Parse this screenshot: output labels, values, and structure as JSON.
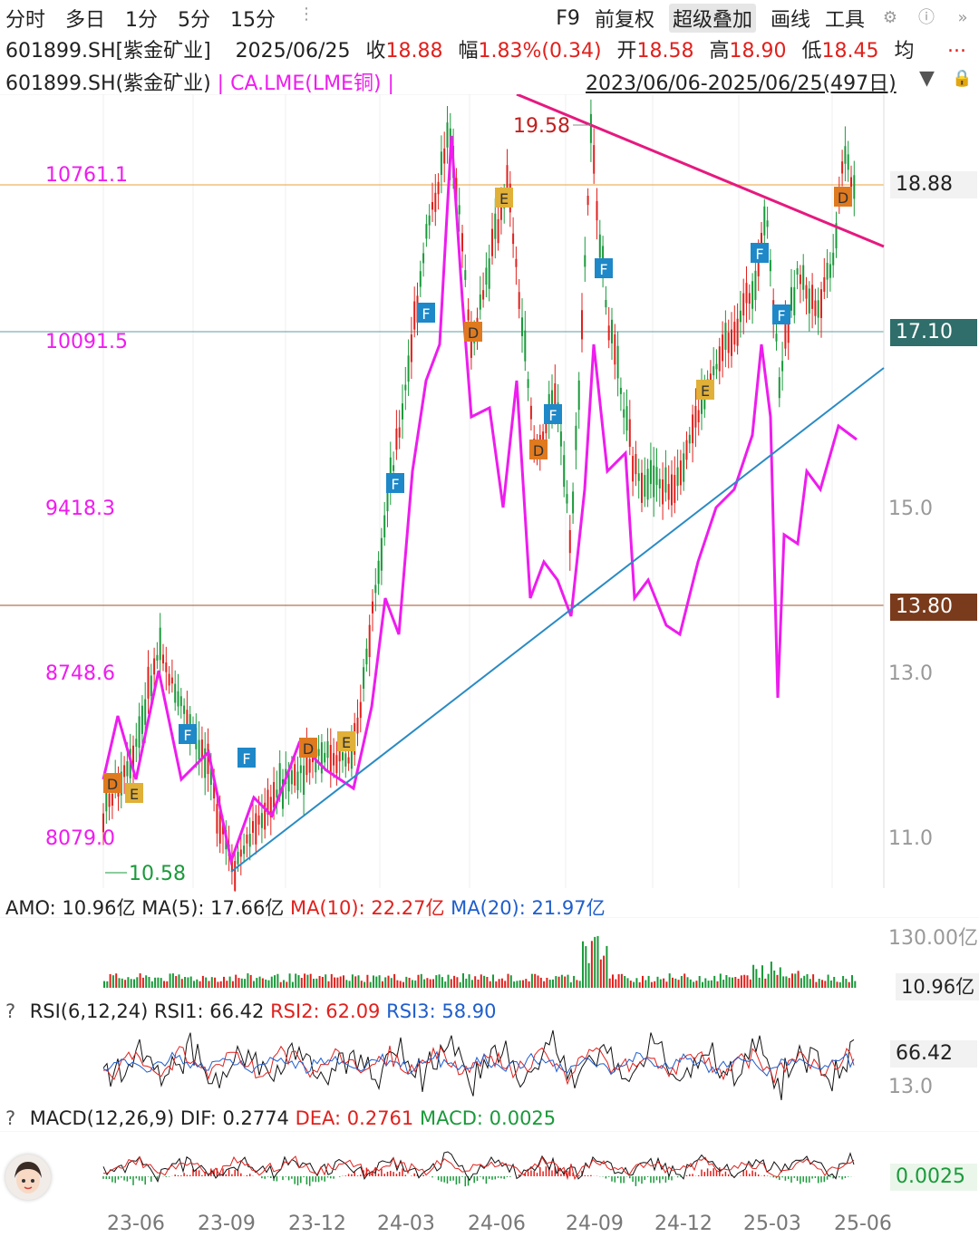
{
  "toolbar": {
    "left": [
      "分时",
      "多日",
      "1分",
      "5分",
      "15分"
    ],
    "right": [
      "F9",
      "前复权",
      "超级叠加",
      "画线",
      "工具"
    ],
    "active": "超级叠加"
  },
  "quote": {
    "symbol": "601899.SH[紫金矿业]",
    "date": "2025/06/25",
    "close_label": "收",
    "close": "18.88",
    "change_label": "幅",
    "change": "1.83%(0.34)",
    "open_label": "开",
    "open": "18.58",
    "high_label": "高",
    "high": "18.90",
    "low_label": "低",
    "low": "18.45",
    "avg_label": "均",
    "more": "..."
  },
  "overlay": {
    "main": "601899.SH(紫金矿业)",
    "separator": "|",
    "overlay_name": "CA.LME(LME铜)",
    "range": "2023/06/06-2025/06/25(497日)"
  },
  "main_chart": {
    "left_axis": [
      "10761.1",
      "10091.5",
      "9418.3",
      "8748.6",
      "8079.0"
    ],
    "right_axis": [
      "15.0",
      "13.0",
      "11.0"
    ],
    "high_mark": "19.58",
    "low_mark": "10.58",
    "tags": [
      {
        "label": "18.88",
        "bg": "#f2f2f2",
        "fg": "#222222"
      },
      {
        "label": "17.10",
        "bg": "#2f6e6a",
        "fg": "#ffffff"
      },
      {
        "label": "13.80",
        "bg": "#7a3b1c",
        "fg": "#ffffff"
      }
    ],
    "markers": [
      "D",
      "E",
      "F",
      "F",
      "D",
      "E",
      "F",
      "D",
      "E",
      "F",
      "D",
      "F",
      "F",
      "E",
      "F",
      "F",
      "D"
    ]
  },
  "amo": {
    "label": "AMO: 10.96亿",
    "ma5": "MA(5): 17.66亿",
    "ma10": "MA(10): 22.27亿",
    "ma20": "MA(20): 21.97亿",
    "axis_top": "130.00亿",
    "tag": "10.96亿"
  },
  "rsi": {
    "q": "?",
    "label": "RSI(6,12,24)",
    "rsi1": "RSI1: 66.42",
    "rsi2": "RSI2: 62.09",
    "rsi3": "RSI3: 58.90",
    "axis_bottom": "13.0",
    "tag": "66.42"
  },
  "macd": {
    "q": "?",
    "label": "MACD(12,26,9)",
    "dif": "DIF: 0.2774",
    "dea": "DEA: 0.2761",
    "macd": "MACD: 0.0025",
    "tag": "0.0025"
  },
  "x_axis": [
    "23-06",
    "23-09",
    "23-12",
    "24-03",
    "24-06",
    "24-09",
    "24-12",
    "25-03",
    "25-06"
  ],
  "colors": {
    "up": "#e0211d",
    "down": "#1a9a3a",
    "overlay": "#ee1cee",
    "trend_down": "#e6197f",
    "trend_up": "#2a8bc4",
    "dif": "#111111",
    "dea": "#e0211d",
    "blue": "#1f5ecc"
  }
}
